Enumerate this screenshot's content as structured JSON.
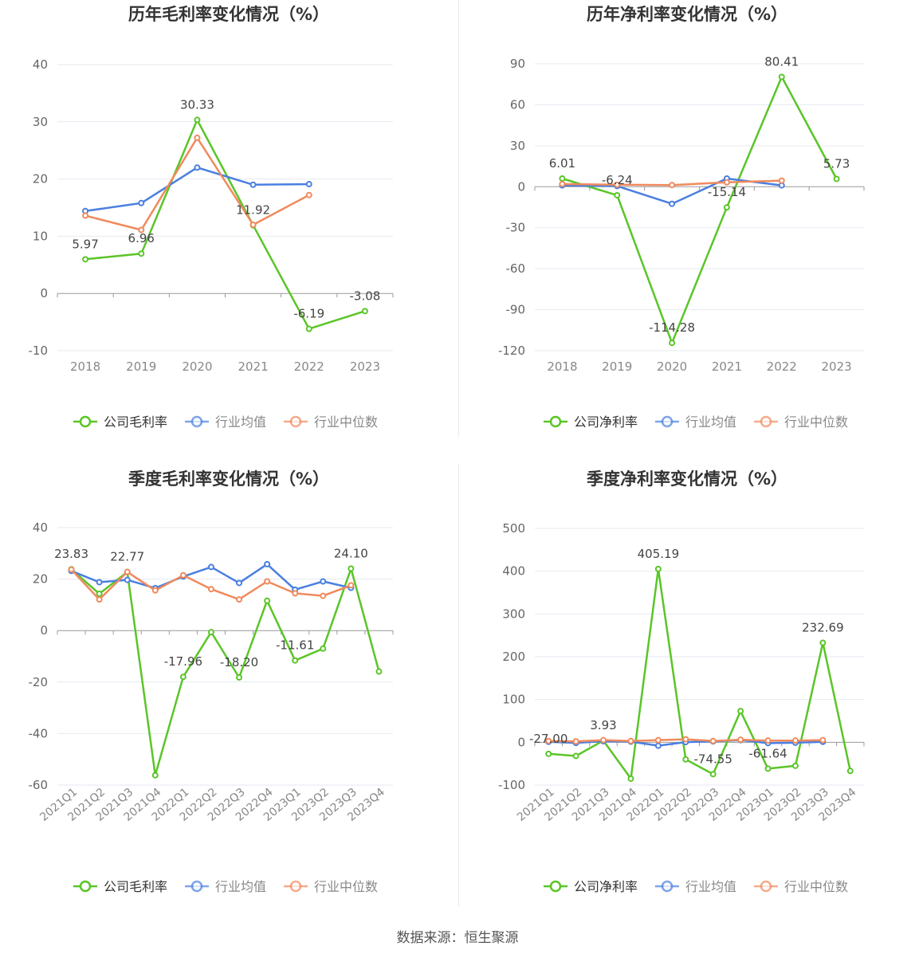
{
  "footer": "数据来源：恒生聚源",
  "colors": {
    "company": "#5ac528",
    "avg": "#4a7fe0",
    "median": "#f08a5d",
    "axis": "#666666",
    "grid": "#e6e9f0",
    "title": "#333333"
  },
  "legend_markers": [
    "circle",
    "circle",
    "circle"
  ],
  "chart_data": [
    {
      "type": "line",
      "title": "历年毛利率变化情况（%）",
      "categories": [
        "2018",
        "2019",
        "2020",
        "2021",
        "2022",
        "2023"
      ],
      "yticks": [
        40,
        30,
        20,
        10,
        0,
        -10
      ],
      "ylim": [
        -10,
        40
      ],
      "series": [
        {
          "name": "公司毛利率",
          "values": [
            5.97,
            6.96,
            30.33,
            11.92,
            -6.19,
            -3.08
          ],
          "labels": [
            "5.97",
            "6.96",
            "30.33",
            "11.92",
            "-6.19",
            "-3.08"
          ]
        },
        {
          "name": "行业均值",
          "values": [
            14.4,
            15.8,
            22.0,
            19.0,
            19.1,
            null
          ]
        },
        {
          "name": "行业中位数",
          "values": [
            13.6,
            11.1,
            27.2,
            12.0,
            17.2,
            null
          ]
        }
      ]
    },
    {
      "type": "line",
      "title": "历年净利率变化情况（%）",
      "categories": [
        "2018",
        "2019",
        "2020",
        "2021",
        "2022",
        "2023"
      ],
      "yticks": [
        90,
        60,
        30,
        0,
        -30,
        -60,
        -90,
        -120
      ],
      "ylim": [
        -120,
        90
      ],
      "series": [
        {
          "name": "公司净利率",
          "values": [
            6.01,
            -6.24,
            -114.28,
            -15.14,
            80.41,
            5.73
          ],
          "labels": [
            "6.01",
            "-6.24",
            "-114.28",
            "-15.14",
            "80.41",
            "5.73"
          ]
        },
        {
          "name": "行业均值",
          "values": [
            1.0,
            0.5,
            -12.5,
            6.0,
            1.0,
            null
          ]
        },
        {
          "name": "行业中位数",
          "values": [
            2.0,
            1.5,
            1.2,
            3.2,
            4.5,
            null
          ]
        }
      ]
    },
    {
      "type": "line",
      "title": "季度毛利率变化情况（%）",
      "categories": [
        "2021Q1",
        "2021Q2",
        "2021Q3",
        "2021Q4",
        "2022Q1",
        "2022Q2",
        "2022Q3",
        "2022Q4",
        "2023Q1",
        "2023Q2",
        "2023Q3",
        "2023Q4"
      ],
      "yticks": [
        40,
        20,
        0,
        -20,
        -40,
        -60
      ],
      "ylim": [
        -60,
        40
      ],
      "series": [
        {
          "name": "公司毛利率",
          "values": [
            23.83,
            14.3,
            22.77,
            -56.2,
            -17.96,
            -0.6,
            -18.2,
            11.6,
            -11.61,
            -7.0,
            24.1,
            -15.9
          ],
          "labels": [
            "23.83",
            null,
            "22.77",
            null,
            "-17.96",
            null,
            "-18.20",
            null,
            "-11.61",
            null,
            "24.10",
            null
          ]
        },
        {
          "name": "行业均值",
          "values": [
            23.2,
            18.8,
            19.7,
            16.5,
            21.0,
            24.7,
            18.5,
            25.8,
            15.9,
            19.1,
            16.6,
            null
          ]
        },
        {
          "name": "行业中位数",
          "values": [
            23.7,
            12.1,
            22.8,
            15.6,
            21.5,
            16.1,
            12.1,
            19.1,
            14.5,
            13.5,
            17.6,
            null
          ]
        }
      ]
    },
    {
      "type": "line",
      "title": "季度净利率变化情况（%）",
      "categories": [
        "2021Q1",
        "2021Q2",
        "2021Q3",
        "2021Q4",
        "2022Q1",
        "2022Q2",
        "2022Q3",
        "2022Q4",
        "2023Q1",
        "2023Q2",
        "2023Q3",
        "2023Q4"
      ],
      "yticks": [
        500,
        400,
        300,
        200,
        100,
        0,
        -100
      ],
      "ylim": [
        -100,
        500
      ],
      "series": [
        {
          "name": "公司净利率",
          "values": [
            -27.0,
            -32.0,
            3.93,
            -85.0,
            405.19,
            -40.0,
            -74.55,
            73.0,
            -61.64,
            -55.0,
            232.69,
            -67.0
          ],
          "labels": [
            "-27.00",
            null,
            "3.93",
            null,
            "405.19",
            null,
            "-74.55",
            null,
            "-61.64",
            null,
            "232.69",
            null
          ]
        },
        {
          "name": "行业均值",
          "values": [
            1.0,
            -1.5,
            2.5,
            1.5,
            -8.0,
            0.5,
            2.0,
            5.0,
            -2.0,
            -1.0,
            1.0,
            null
          ]
        },
        {
          "name": "行业中位数",
          "values": [
            3.0,
            2.0,
            5.0,
            3.0,
            5.0,
            7.0,
            3.0,
            6.0,
            4.0,
            4.0,
            5.0,
            null
          ]
        }
      ]
    }
  ]
}
